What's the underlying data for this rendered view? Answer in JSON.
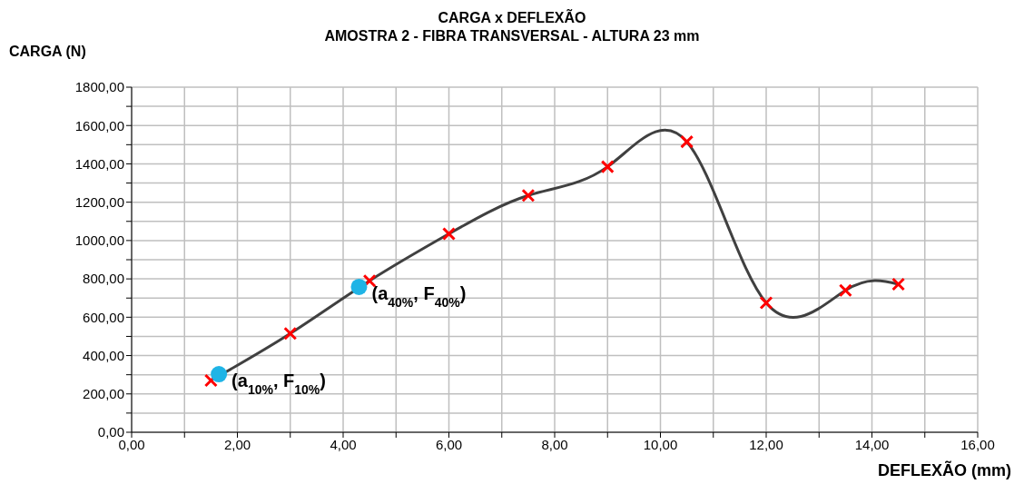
{
  "chart_data": {
    "type": "line",
    "title": "CARGA x DEFLEXÃO",
    "subtitle": "AMOSTRA 2 - FIBRA TRANSVERSAL - ALTURA 23 mm",
    "xlabel": "DEFLEXÃO (mm)",
    "ylabel": "CARGA (N)",
    "xlim": [
      0,
      16
    ],
    "ylim": [
      0,
      1800
    ],
    "xticks": [
      {
        "value": 0,
        "label": "0,00"
      },
      {
        "value": 1,
        "label": null
      },
      {
        "value": 2,
        "label": "2,00"
      },
      {
        "value": 3,
        "label": null
      },
      {
        "value": 4,
        "label": "4,00"
      },
      {
        "value": 5,
        "label": null
      },
      {
        "value": 6,
        "label": "6,00"
      },
      {
        "value": 7,
        "label": null
      },
      {
        "value": 8,
        "label": "8,00"
      },
      {
        "value": 9,
        "label": null
      },
      {
        "value": 10,
        "label": "10,00"
      },
      {
        "value": 11,
        "label": null
      },
      {
        "value": 12,
        "label": "12,00"
      },
      {
        "value": 13,
        "label": null
      },
      {
        "value": 14,
        "label": "14,00"
      },
      {
        "value": 15,
        "label": null
      },
      {
        "value": 16,
        "label": "16,00"
      }
    ],
    "yticks": [
      {
        "value": 0,
        "label": "0,00"
      },
      {
        "value": 100,
        "label": null
      },
      {
        "value": 200,
        "label": "200,00"
      },
      {
        "value": 300,
        "label": null
      },
      {
        "value": 400,
        "label": "400,00"
      },
      {
        "value": 500,
        "label": null
      },
      {
        "value": 600,
        "label": "600,00"
      },
      {
        "value": 700,
        "label": null
      },
      {
        "value": 800,
        "label": "800,00"
      },
      {
        "value": 900,
        "label": null
      },
      {
        "value": 1000,
        "label": "1000,00"
      },
      {
        "value": 1100,
        "label": null
      },
      {
        "value": 1200,
        "label": "1200,00"
      },
      {
        "value": 1300,
        "label": null
      },
      {
        "value": 1400,
        "label": "1400,00"
      },
      {
        "value": 1500,
        "label": null
      },
      {
        "value": 1600,
        "label": "1600,00"
      },
      {
        "value": 1700,
        "label": null
      },
      {
        "value": 1800,
        "label": "1800,00"
      }
    ],
    "grid": true,
    "series": [
      {
        "color": "#404040",
        "marker": "none",
        "x": [
          1.5,
          3,
          4.5,
          6,
          7.5,
          9,
          10.5,
          12,
          13.5,
          14.5
        ],
        "values": [
          270,
          515,
          790,
          1035,
          1235,
          1385,
          1515,
          675,
          740,
          772
        ]
      },
      {
        "type": "scatter",
        "color": "#ff0000",
        "marker": "cross",
        "x": [
          1.5,
          3,
          4.5,
          6,
          7.5,
          9,
          10.5,
          12,
          13.5,
          14.5
        ],
        "values": [
          270,
          515,
          790,
          1035,
          1235,
          1385,
          1515,
          675,
          740,
          772
        ]
      },
      {
        "type": "scatter",
        "color": "#1fb4e6",
        "marker": "circle",
        "x": [
          1.65,
          4.3
        ],
        "values": [
          303,
          758
        ]
      }
    ],
    "annotations": [
      {
        "text": "(a$_{10%}$, F$_{10%}$)",
        "x": 1.65,
        "y": 303
      },
      {
        "text": "(a$_{40%}$, F$_{40%}$)",
        "x": 4.3,
        "y": 758
      }
    ]
  }
}
